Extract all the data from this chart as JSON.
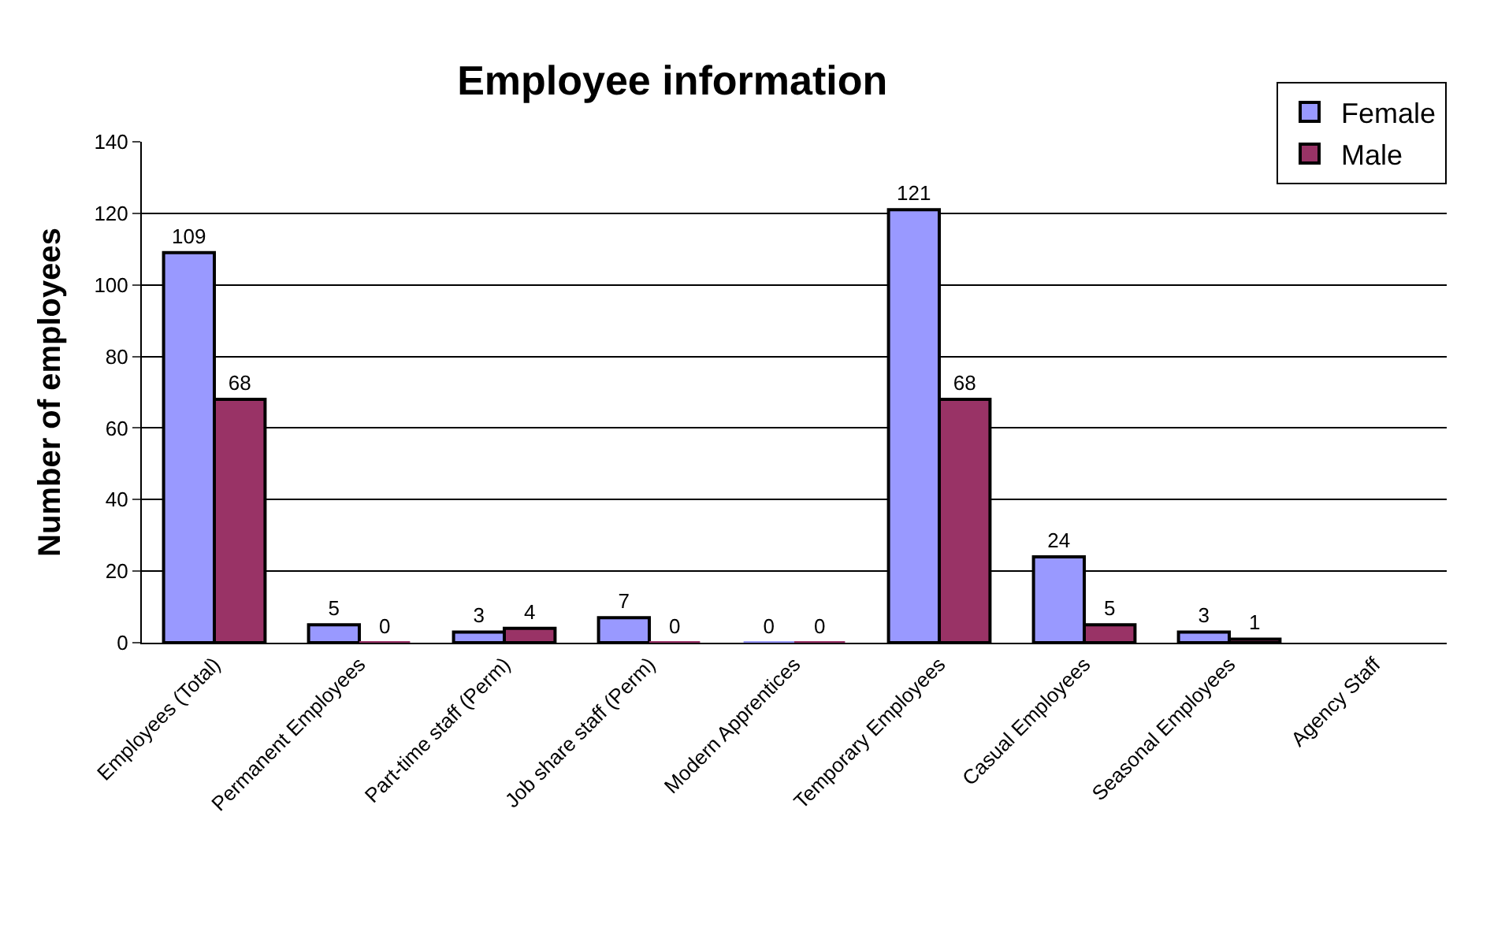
{
  "chart_data": {
    "type": "bar",
    "title": "Employee information",
    "ylabel": "Number of employees",
    "categories": [
      "Employees (Total)",
      "Permanent Employees",
      "Part-time staff (Perm)",
      "Job share staff (Perm)",
      "Modern Apprentices",
      "Temporary Employees",
      "Casual Employees",
      "Seasonal Employees",
      "Agency Staff"
    ],
    "series": [
      {
        "name": "Female",
        "color": "#9999ff",
        "values": [
          109,
          5,
          3,
          7,
          0,
          121,
          24,
          3,
          null
        ]
      },
      {
        "name": "Male",
        "color": "#993366",
        "values": [
          68,
          0,
          4,
          0,
          0,
          68,
          5,
          1,
          null
        ]
      }
    ],
    "ylim": [
      0,
      140
    ],
    "yticks": [
      0,
      20,
      40,
      60,
      80,
      100,
      120,
      140
    ],
    "grid": "y",
    "legend": "top right",
    "data_labels": true
  }
}
